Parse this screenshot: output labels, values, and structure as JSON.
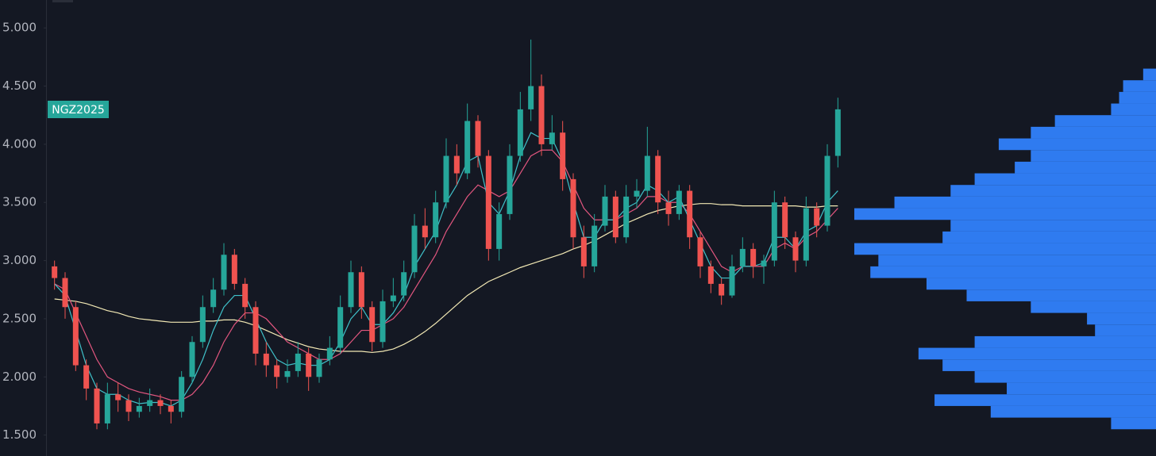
{
  "chart_data": {
    "type": "candlestick",
    "symbol": "NGZ2025",
    "ylim": [
      1.32,
      5.24
    ],
    "yticks": [
      {
        "value": 1.5,
        "label": "1.500"
      },
      {
        "value": 2,
        "label": "2.000"
      },
      {
        "value": 2.5,
        "label": "2.500"
      },
      {
        "value": 3,
        "label": "3.000"
      },
      {
        "value": 3.5,
        "label": "3.500"
      },
      {
        "value": 4,
        "label": "4.000"
      },
      {
        "value": 4.5,
        "label": "4.500"
      },
      {
        "value": 5,
        "label": "5.000"
      }
    ],
    "up_color": "#26a69a",
    "down_color": "#ef5350",
    "candles": {
      "open": [
        2.95,
        2.85,
        2.6,
        2.1,
        1.9,
        1.6,
        1.85,
        1.8,
        1.7,
        1.75,
        1.8,
        1.75,
        1.7,
        2.0,
        2.3,
        2.6,
        2.75,
        3.05,
        2.8,
        2.6,
        2.2,
        2.1,
        2.0,
        2.05,
        2.2,
        2.0,
        2.15,
        2.25,
        2.6,
        2.9,
        2.6,
        2.3,
        2.65,
        2.7,
        2.9,
        3.3,
        3.2,
        3.5,
        3.9,
        3.75,
        4.2,
        3.9,
        3.1,
        3.4,
        3.9,
        4.3,
        4.5,
        4.0,
        4.1,
        3.7,
        3.2,
        2.95,
        3.3,
        3.55,
        3.2,
        3.55,
        3.6,
        3.9,
        3.5,
        3.4,
        3.6,
        3.2,
        2.95,
        2.8,
        2.7,
        2.95,
        3.1,
        2.95,
        3.0,
        3.5,
        3.2,
        3.0,
        3.45,
        3.3,
        3.9
      ],
      "high": [
        3.0,
        2.9,
        2.65,
        2.15,
        1.95,
        1.95,
        1.95,
        1.85,
        1.82,
        1.9,
        1.85,
        1.8,
        2.05,
        2.35,
        2.7,
        2.85,
        3.15,
        3.1,
        2.85,
        2.65,
        2.3,
        2.15,
        2.15,
        2.3,
        2.25,
        2.2,
        2.35,
        2.7,
        3.0,
        2.95,
        2.65,
        2.75,
        2.85,
        3.0,
        3.4,
        3.45,
        3.6,
        4.05,
        4.0,
        4.35,
        4.25,
        3.95,
        3.5,
        4.0,
        4.45,
        4.9,
        4.6,
        4.25,
        4.2,
        3.75,
        3.3,
        3.4,
        3.65,
        3.6,
        3.65,
        3.7,
        4.15,
        3.95,
        3.6,
        3.65,
        3.65,
        3.25,
        3.0,
        2.85,
        3.05,
        3.2,
        3.15,
        3.05,
        3.6,
        3.55,
        3.25,
        3.55,
        3.5,
        4.0,
        4.4
      ],
      "low": [
        2.75,
        2.5,
        2.05,
        1.8,
        1.55,
        1.55,
        1.7,
        1.62,
        1.65,
        1.7,
        1.68,
        1.6,
        1.65,
        1.95,
        2.25,
        2.55,
        2.7,
        2.75,
        2.5,
        2.1,
        2.0,
        1.9,
        1.95,
        2.0,
        1.88,
        1.95,
        2.1,
        2.2,
        2.55,
        2.5,
        2.22,
        2.25,
        2.6,
        2.65,
        2.85,
        3.1,
        3.15,
        3.45,
        3.65,
        3.7,
        3.8,
        3.0,
        3.0,
        3.35,
        3.85,
        4.2,
        3.9,
        3.95,
        3.6,
        3.1,
        2.85,
        2.9,
        3.25,
        3.15,
        3.15,
        3.45,
        3.55,
        3.4,
        3.3,
        3.35,
        3.1,
        2.85,
        2.72,
        2.62,
        2.68,
        2.9,
        2.85,
        2.8,
        2.95,
        3.1,
        2.9,
        2.95,
        3.2,
        3.25,
        3.8
      ],
      "close": [
        2.85,
        2.6,
        2.1,
        1.9,
        1.6,
        1.85,
        1.8,
        1.7,
        1.75,
        1.8,
        1.75,
        1.7,
        2.0,
        2.3,
        2.6,
        2.75,
        3.05,
        2.8,
        2.6,
        2.2,
        2.1,
        2.0,
        2.05,
        2.2,
        2.0,
        2.15,
        2.25,
        2.6,
        2.9,
        2.6,
        2.3,
        2.65,
        2.7,
        2.9,
        3.3,
        3.2,
        3.5,
        3.9,
        3.75,
        4.2,
        3.9,
        3.1,
        3.4,
        3.9,
        4.3,
        4.5,
        4.0,
        4.1,
        3.7,
        3.2,
        2.95,
        3.3,
        3.55,
        3.2,
        3.55,
        3.6,
        3.9,
        3.5,
        3.4,
        3.6,
        3.2,
        2.95,
        2.8,
        2.7,
        2.95,
        3.1,
        2.95,
        3.0,
        3.5,
        3.2,
        3.0,
        3.45,
        3.3,
        3.9,
        4.3
      ]
    },
    "lines": [
      {
        "color": "#f3e9b5",
        "values": [
          2.67,
          2.66,
          2.65,
          2.63,
          2.6,
          2.57,
          2.55,
          2.52,
          2.5,
          2.49,
          2.48,
          2.47,
          2.47,
          2.47,
          2.48,
          2.48,
          2.49,
          2.49,
          2.47,
          2.44,
          2.4,
          2.36,
          2.32,
          2.29,
          2.26,
          2.24,
          2.23,
          2.22,
          2.22,
          2.22,
          2.21,
          2.22,
          2.24,
          2.28,
          2.33,
          2.39,
          2.46,
          2.54,
          2.62,
          2.7,
          2.76,
          2.82,
          2.86,
          2.9,
          2.94,
          2.97,
          3.0,
          3.03,
          3.06,
          3.1,
          3.13,
          3.17,
          3.22,
          3.27,
          3.32,
          3.36,
          3.4,
          3.43,
          3.45,
          3.47,
          3.48,
          3.49,
          3.49,
          3.48,
          3.48,
          3.47,
          3.47,
          3.47,
          3.47,
          3.47,
          3.47,
          3.46,
          3.46,
          3.47,
          3.47
        ]
      },
      {
        "color": "#e2567f",
        "values": [
          2.8,
          2.75,
          2.55,
          2.35,
          2.15,
          2.0,
          1.95,
          1.9,
          1.87,
          1.85,
          1.83,
          1.8,
          1.8,
          1.85,
          1.95,
          2.1,
          2.3,
          2.45,
          2.55,
          2.55,
          2.5,
          2.4,
          2.3,
          2.25,
          2.2,
          2.15,
          2.15,
          2.2,
          2.3,
          2.4,
          2.4,
          2.45,
          2.5,
          2.6,
          2.75,
          2.9,
          3.05,
          3.25,
          3.4,
          3.55,
          3.65,
          3.6,
          3.55,
          3.6,
          3.75,
          3.9,
          3.95,
          3.95,
          3.85,
          3.65,
          3.45,
          3.35,
          3.35,
          3.35,
          3.4,
          3.45,
          3.55,
          3.55,
          3.5,
          3.5,
          3.4,
          3.25,
          3.1,
          2.95,
          2.9,
          2.95,
          2.95,
          2.95,
          3.1,
          3.15,
          3.1,
          3.2,
          3.25,
          3.35,
          3.45
        ]
      },
      {
        "color": "#3fc1c9",
        "values": [
          2.8,
          2.7,
          2.4,
          2.1,
          1.9,
          1.85,
          1.85,
          1.8,
          1.77,
          1.78,
          1.78,
          1.75,
          1.8,
          1.95,
          2.15,
          2.4,
          2.6,
          2.7,
          2.7,
          2.5,
          2.3,
          2.15,
          2.1,
          2.12,
          2.1,
          2.1,
          2.15,
          2.3,
          2.5,
          2.6,
          2.45,
          2.45,
          2.55,
          2.7,
          2.95,
          3.1,
          3.25,
          3.5,
          3.65,
          3.85,
          3.9,
          3.5,
          3.4,
          3.6,
          3.9,
          4.1,
          4.05,
          4.05,
          3.85,
          3.5,
          3.2,
          3.2,
          3.35,
          3.35,
          3.45,
          3.5,
          3.65,
          3.6,
          3.5,
          3.55,
          3.35,
          3.15,
          2.95,
          2.85,
          2.85,
          2.95,
          2.95,
          2.98,
          3.2,
          3.2,
          3.1,
          3.25,
          3.3,
          3.5,
          3.6
        ]
      }
    ],
    "profile": {
      "color": "#2f7bf0",
      "prices": [
        1.6,
        1.7,
        1.8,
        1.9,
        2.0,
        2.1,
        2.2,
        2.3,
        2.4,
        2.5,
        2.6,
        2.7,
        2.8,
        2.9,
        3.0,
        3.1,
        3.2,
        3.3,
        3.4,
        3.5,
        3.6,
        3.7,
        3.8,
        3.9,
        4.0,
        4.1,
        4.2,
        4.3,
        4.4,
        4.5,
        4.6
      ],
      "values": [
        56,
        206,
        276,
        186,
        226,
        266,
        296,
        226,
        76,
        86,
        156,
        236,
        286,
        356,
        346,
        376,
        266,
        256,
        376,
        326,
        256,
        226,
        176,
        156,
        196,
        156,
        126,
        56,
        46,
        41,
        16
      ]
    }
  }
}
